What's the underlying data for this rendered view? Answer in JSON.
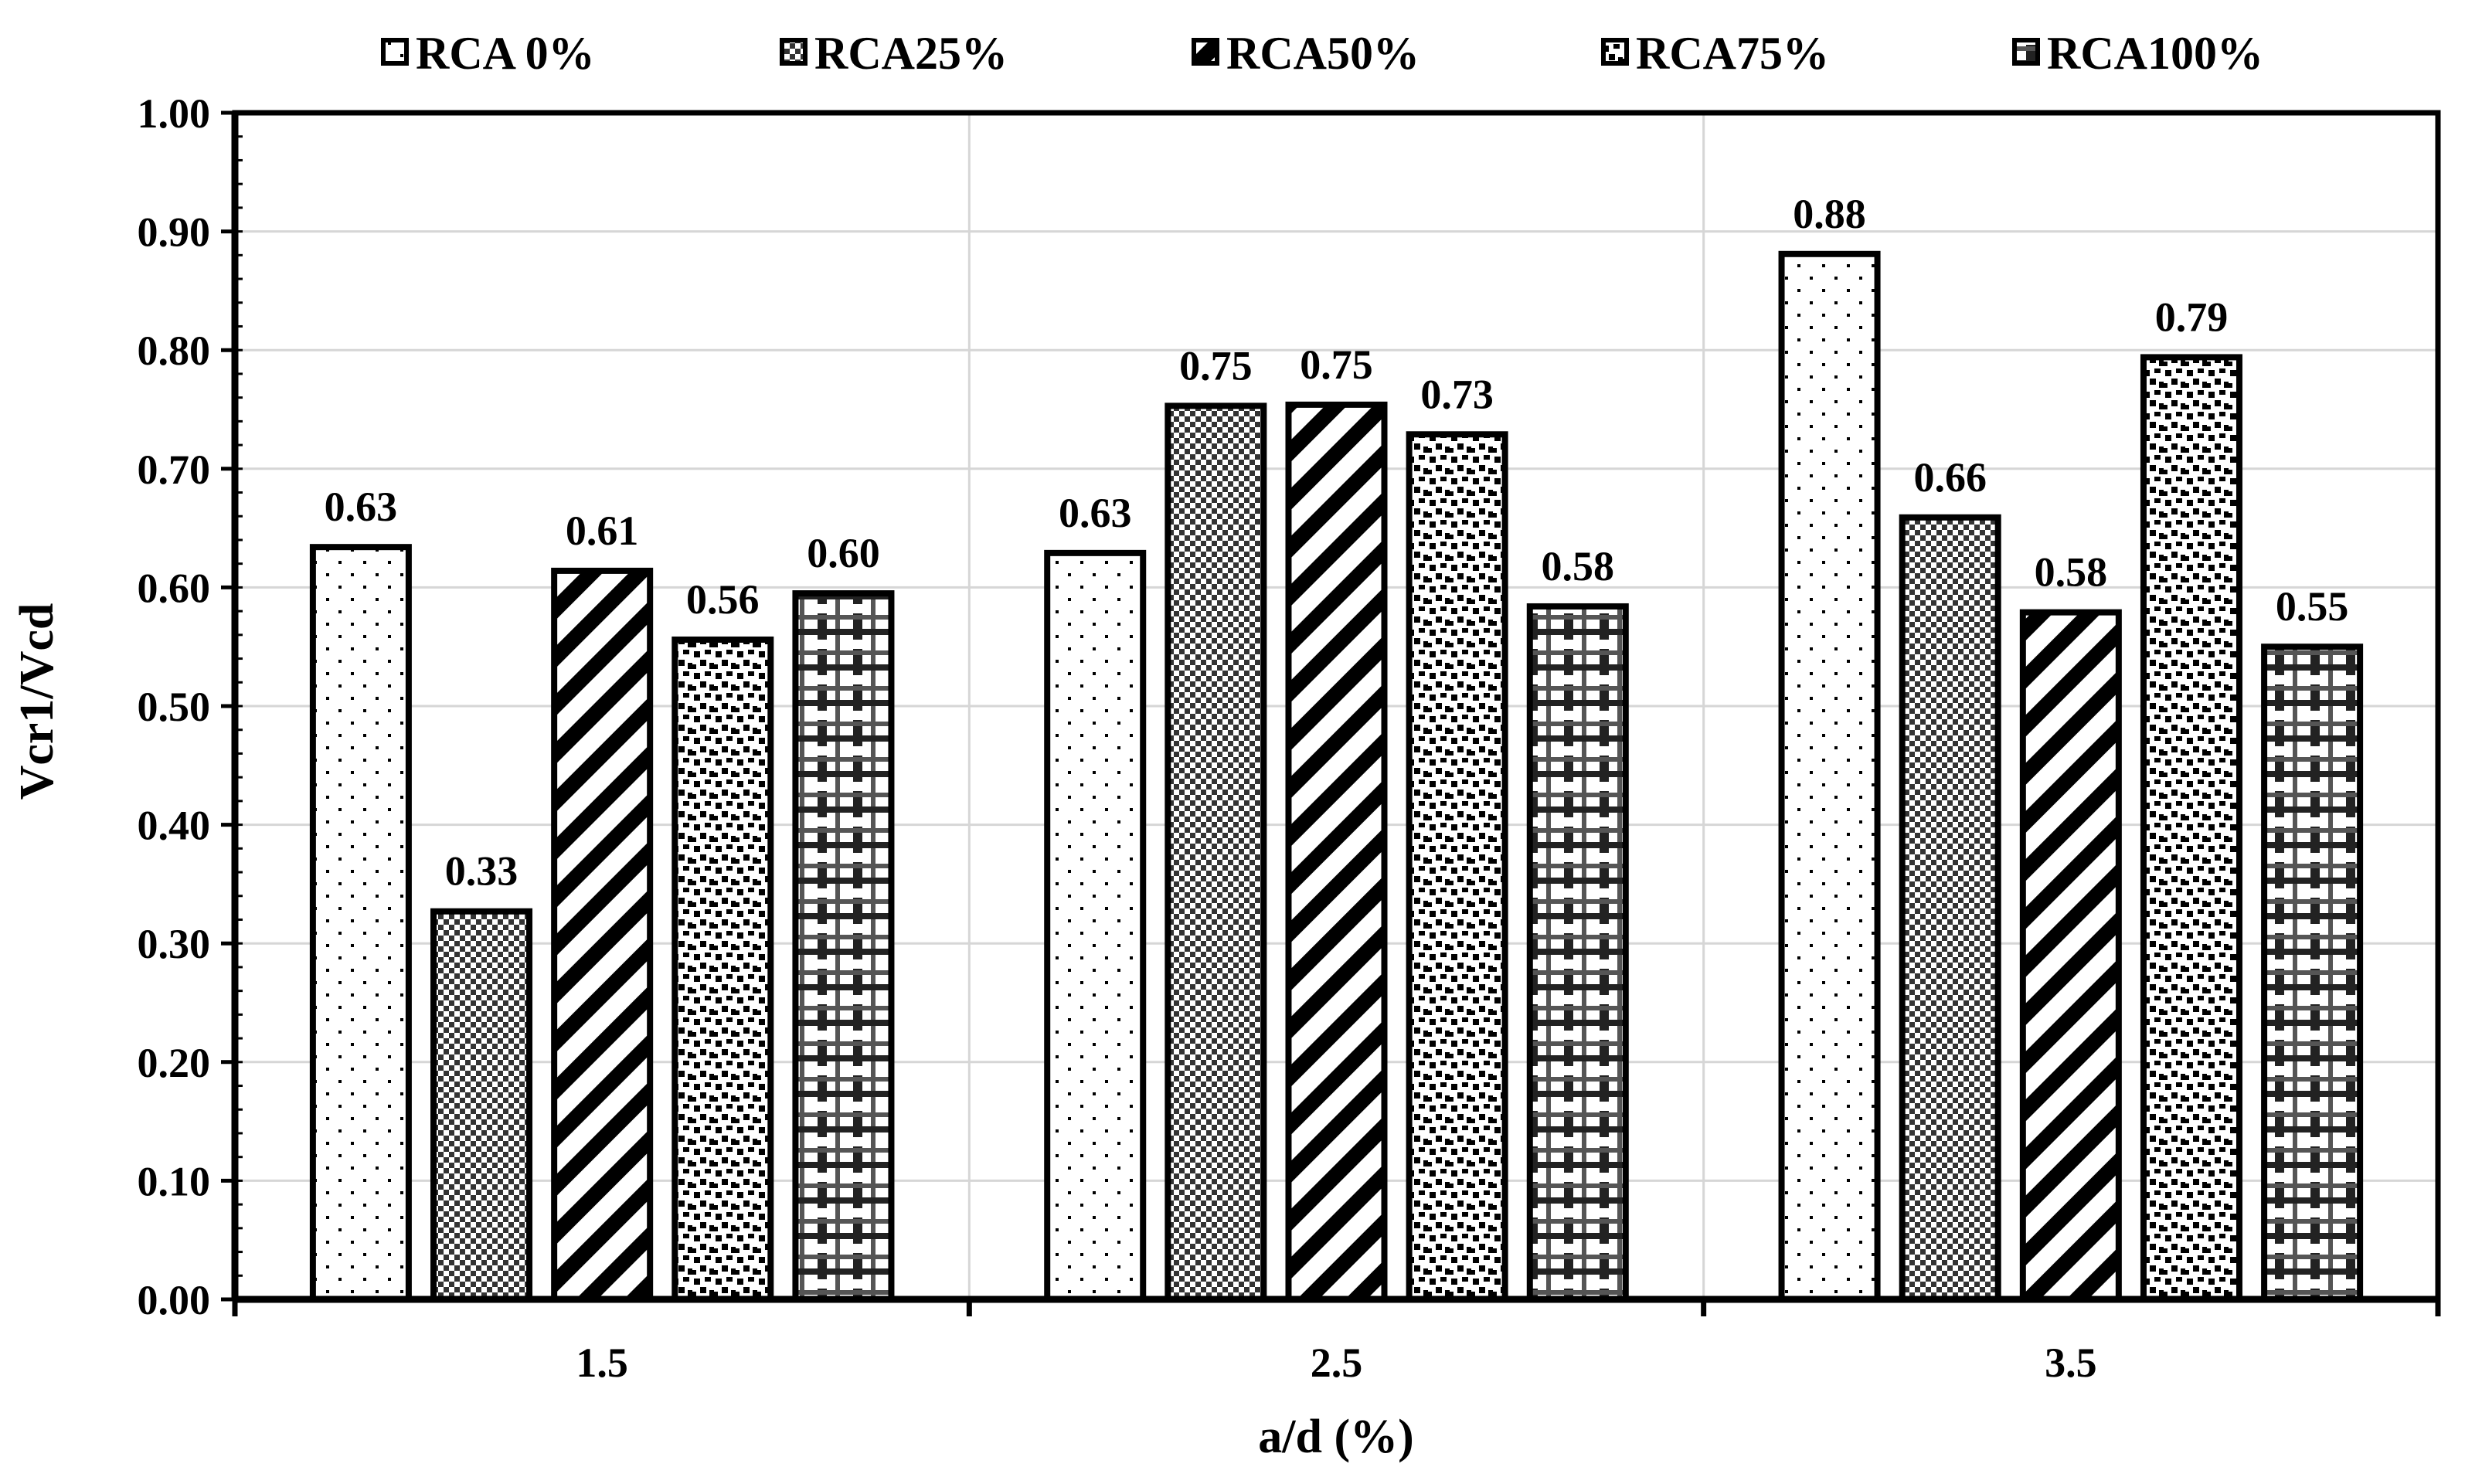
{
  "chart_data": {
    "type": "bar",
    "title": "",
    "xlabel": "a/d (%)",
    "ylabel": "Vcr1/Vcd",
    "ylim": [
      0,
      1.0
    ],
    "yticks": [
      "0.00",
      "0.10",
      "0.20",
      "0.30",
      "0.40",
      "0.50",
      "0.60",
      "0.70",
      "0.80",
      "0.90",
      "1.00"
    ],
    "grid": true,
    "legend_position": "top",
    "categories": [
      "1.5",
      "2.5",
      "3.5"
    ],
    "series": [
      {
        "name": "RCA 0%",
        "pattern": "dots",
        "values": [
          0.634,
          0.629,
          0.881
        ],
        "labels": [
          "0.63",
          "0.63",
          "0.88"
        ]
      },
      {
        "name": "RCA25%",
        "pattern": "checker",
        "values": [
          0.327,
          0.753,
          0.659
        ],
        "labels": [
          "0.33",
          "0.75",
          "0.66"
        ]
      },
      {
        "name": "RCA50%",
        "pattern": "diagonal",
        "values": [
          0.614,
          0.754,
          0.579
        ],
        "labels": [
          "0.61",
          "0.75",
          "0.58"
        ]
      },
      {
        "name": "RCA75%",
        "pattern": "confetti",
        "values": [
          0.556,
          0.729,
          0.794
        ],
        "labels": [
          "0.56",
          "0.73",
          "0.79"
        ]
      },
      {
        "name": "RCA100%",
        "pattern": "plaid",
        "values": [
          0.595,
          0.584,
          0.55
        ],
        "labels": [
          "0.60",
          "0.58",
          "0.55"
        ]
      }
    ]
  }
}
